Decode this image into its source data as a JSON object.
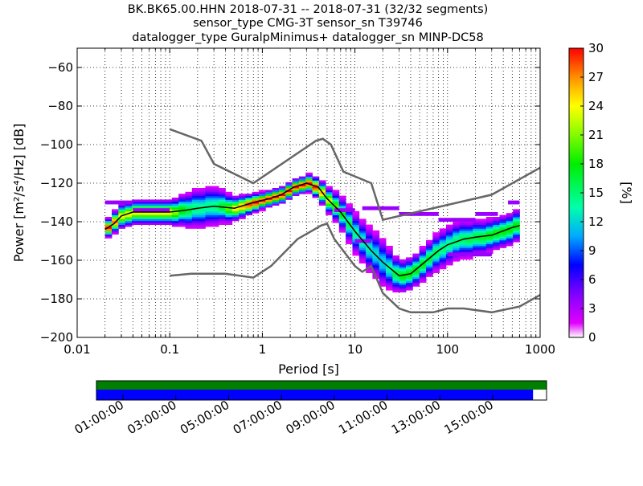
{
  "chart_data": {
    "type": "heatmap",
    "title_lines": [
      "BK.BK65.00.HHN   2018-07-31 -- 2018-07-31  (32/32 segments)",
      "sensor_type CMG-3T sensor_sn T39746",
      "datalogger_type GuralpMinimus+ datalogger_sn MINP-DC58"
    ],
    "xlabel": "Period [s]",
    "ylabel": "Power [m²/s⁴/Hz] [dB]",
    "x_scale": "log",
    "xlim": [
      0.01,
      1000
    ],
    "ylim": [
      -200,
      -50
    ],
    "x_ticks": [
      0.01,
      0.1,
      1,
      10,
      100,
      1000
    ],
    "x_tick_labels": [
      "0.01",
      "0.1",
      "1",
      "10",
      "100",
      "1000"
    ],
    "y_ticks": [
      -200,
      -180,
      -160,
      -140,
      -120,
      -100,
      -80,
      -60
    ],
    "y_tick_labels": [
      "−200",
      "−180",
      "−160",
      "−140",
      "−120",
      "−100",
      "−80",
      "−60"
    ],
    "grid": true,
    "colorbar": {
      "label": "[%]",
      "range": [
        0,
        30
      ],
      "ticks": [
        0,
        3,
        6,
        9,
        12,
        15,
        18,
        21,
        24,
        27,
        30
      ],
      "tick_labels": [
        "0",
        "3",
        "6",
        "9",
        "12",
        "15",
        "18",
        "21",
        "24",
        "27",
        "30"
      ]
    },
    "noise_models": [
      {
        "line_color": "#666666",
        "points": [
          [
            0.1,
            -92
          ],
          [
            0.22,
            -98
          ],
          [
            0.3,
            -110
          ],
          [
            0.8,
            -120
          ],
          [
            3.8,
            -98
          ],
          [
            4.5,
            -97
          ],
          [
            5.5,
            -100
          ],
          [
            7.5,
            -114
          ],
          [
            15,
            -120
          ],
          [
            20,
            -139
          ],
          [
            300,
            -126
          ],
          [
            1000,
            -112
          ]
        ]
      },
      {
        "line_color": "#666666",
        "points": [
          [
            0.1,
            -168
          ],
          [
            0.17,
            -167
          ],
          [
            0.4,
            -167
          ],
          [
            0.8,
            -169
          ],
          [
            1.24,
            -163
          ],
          [
            2.4,
            -149
          ],
          [
            4.3,
            -142
          ],
          [
            5,
            -141
          ],
          [
            6,
            -149
          ],
          [
            10,
            -163
          ],
          [
            12,
            -166
          ],
          [
            15,
            -163
          ],
          [
            20,
            -177
          ],
          [
            30,
            -185
          ],
          [
            40,
            -187
          ],
          [
            70,
            -187
          ],
          [
            100,
            -185
          ],
          [
            150,
            -185
          ],
          [
            300,
            -187
          ],
          [
            600,
            -184
          ],
          [
            1000,
            -178
          ]
        ]
      }
    ],
    "mean_curve": {
      "line_color": "#000000",
      "points": [
        [
          0.02,
          -144
        ],
        [
          0.025,
          -141
        ],
        [
          0.03,
          -137
        ],
        [
          0.04,
          -135
        ],
        [
          0.06,
          -135
        ],
        [
          0.1,
          -135
        ],
        [
          0.15,
          -134
        ],
        [
          0.2,
          -133
        ],
        [
          0.3,
          -132
        ],
        [
          0.5,
          -133
        ],
        [
          0.8,
          -130
        ],
        [
          1.2,
          -128
        ],
        [
          1.6,
          -126
        ],
        [
          2.2,
          -122
        ],
        [
          3,
          -120
        ],
        [
          4,
          -122
        ],
        [
          5,
          -128
        ],
        [
          7,
          -135
        ],
        [
          10,
          -145
        ],
        [
          15,
          -155
        ],
        [
          20,
          -161
        ],
        [
          30,
          -168
        ],
        [
          40,
          -167
        ],
        [
          60,
          -160
        ],
        [
          80,
          -155
        ],
        [
          100,
          -152
        ],
        [
          150,
          -149
        ],
        [
          200,
          -148
        ],
        [
          300,
          -147
        ],
        [
          500,
          -143
        ],
        [
          600,
          -142
        ]
      ]
    },
    "density_spread": {
      "points": [
        [
          0.02,
          2
        ],
        [
          0.03,
          3
        ],
        [
          0.1,
          3
        ],
        [
          0.2,
          5
        ],
        [
          0.3,
          5
        ],
        [
          0.5,
          3
        ],
        [
          1,
          2
        ],
        [
          2,
          2
        ],
        [
          3,
          2
        ],
        [
          5,
          3
        ],
        [
          10,
          5
        ],
        [
          20,
          6
        ],
        [
          30,
          4
        ],
        [
          50,
          4
        ],
        [
          100,
          5
        ],
        [
          300,
          4
        ],
        [
          600,
          4
        ]
      ]
    },
    "outliers": [
      {
        "x": [
          0.02,
          0.04
        ],
        "y": -130
      },
      {
        "x": [
          0.04,
          0.1
        ],
        "y": -134
      },
      {
        "x": [
          6,
          10
        ],
        "y": -134
      },
      {
        "x": [
          12,
          30
        ],
        "y": -133
      },
      {
        "x": [
          30,
          80
        ],
        "y": -136
      },
      {
        "x": [
          80,
          200
        ],
        "y": -139
      },
      {
        "x": [
          200,
          350
        ],
        "y": -136
      },
      {
        "x": [
          450,
          600
        ],
        "y": -130
      },
      {
        "x": [
          100,
          300
        ],
        "y": -157
      },
      {
        "x": [
          10,
          15
        ],
        "y": -150
      }
    ],
    "timeline": {
      "bars": [
        {
          "color": "#007f00",
          "coverage": 1.0
        },
        {
          "color": "#0000ff",
          "coverage": 0.97
        }
      ],
      "time_labels": [
        "01:00:00",
        "03:00:00",
        "05:00:00",
        "07:00:00",
        "09:00:00",
        "11:00:00",
        "13:00:00",
        "15:00:00"
      ]
    }
  }
}
